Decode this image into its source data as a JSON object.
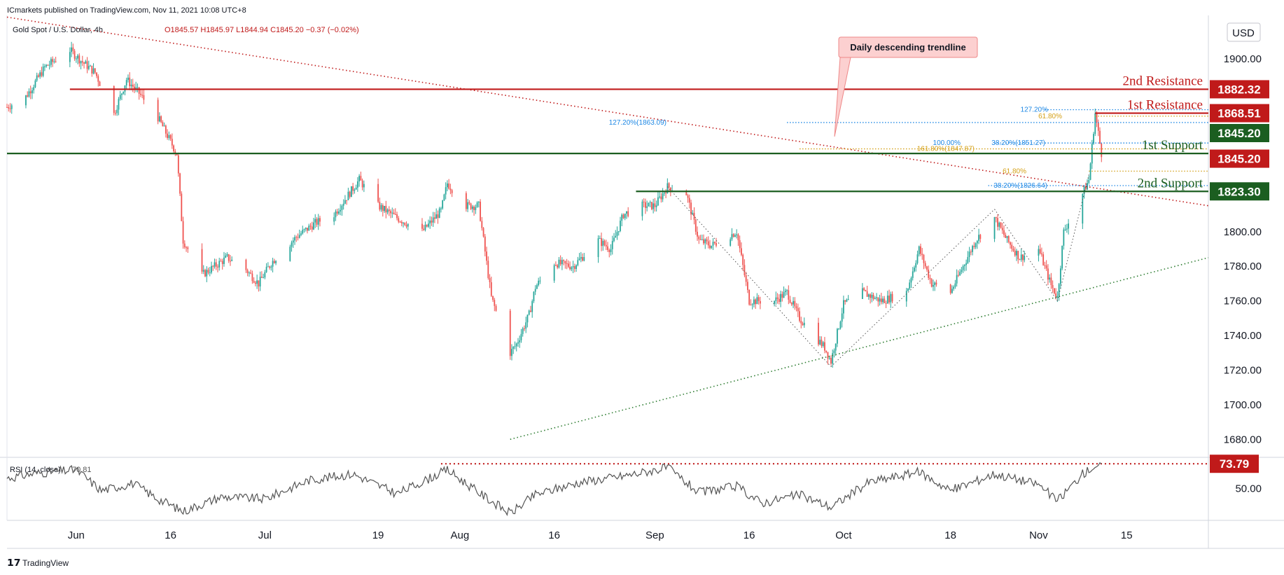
{
  "header": {
    "publisher": "ICmarkets published on TradingView.com, Nov 11, 2021 10:08 UTC+8",
    "symbol": "Gold Spot / U.S. Dollar, 4h",
    "ohlc": "O1845.57 H1845.97 L1844.94 C1845.20 −0.37 (−0.02%)",
    "currency": "USD",
    "footer_logo": "TradingView"
  },
  "colors": {
    "resistance": "#c01a1a",
    "support": "#1b5e20",
    "candle_up": "#26a69a",
    "candle_down": "#ef5350",
    "fib_blue": "#1e88e5",
    "fib_orange": "#d4a017",
    "rsi_line": "#555555"
  },
  "annotations": {
    "trendline_callout": "Daily descending trendline"
  },
  "chart_data": [
    {
      "type": "candlestick",
      "title": "Gold Spot / U.S. Dollar, 4h",
      "ylim": [
        1670,
        1925
      ],
      "y_ticks": [
        1680,
        1700,
        1720,
        1740,
        1760,
        1780,
        1800,
        1820,
        1840,
        1860,
        1880,
        1900,
        1920
      ],
      "y_tick_labels_shown": [
        "1680.00",
        "1700.00",
        "1720.00",
        "1740.00",
        "1760.00",
        "1780.00",
        "1800.00",
        "1900.00"
      ],
      "x_tick_labels": [
        "Jun",
        "16",
        "Jul",
        "19",
        "Aug",
        "16",
        "Sep",
        "16",
        "Oct",
        "18",
        "Nov",
        "15"
      ],
      "x_tick_dates": [
        "2021-06-01",
        "2021-06-16",
        "2021-07-01",
        "2021-07-19",
        "2021-08-01",
        "2021-08-16",
        "2021-09-01",
        "2021-09-16",
        "2021-10-01",
        "2021-10-18",
        "2021-11-01",
        "2021-11-15"
      ],
      "x_range_dates": [
        "2021-05-21",
        "2021-11-28"
      ],
      "price_path": [
        [
          "2021-05-21",
          1872
        ],
        [
          "2021-05-24",
          1878
        ],
        [
          "2021-05-27",
          1895
        ],
        [
          "2021-05-31",
          1905
        ],
        [
          "2021-06-02",
          1898
        ],
        [
          "2021-06-04",
          1892
        ],
        [
          "2021-06-07",
          1868
        ],
        [
          "2021-06-09",
          1888
        ],
        [
          "2021-06-11",
          1880
        ],
        [
          "2021-06-14",
          1866
        ],
        [
          "2021-06-16",
          1852
        ],
        [
          "2021-06-17",
          1845
        ],
        [
          "2021-06-18",
          1795
        ],
        [
          "2021-06-21",
          1775
        ],
        [
          "2021-06-23",
          1780
        ],
        [
          "2021-06-25",
          1785
        ],
        [
          "2021-06-28",
          1778
        ],
        [
          "2021-06-30",
          1770
        ],
        [
          "2021-07-02",
          1782
        ],
        [
          "2021-07-06",
          1797
        ],
        [
          "2021-07-09",
          1805
        ],
        [
          "2021-07-12",
          1810
        ],
        [
          "2021-07-15",
          1825
        ],
        [
          "2021-07-16",
          1830
        ],
        [
          "2021-07-19",
          1815
        ],
        [
          "2021-07-22",
          1808
        ],
        [
          "2021-07-26",
          1800
        ],
        [
          "2021-07-29",
          1812
        ],
        [
          "2021-07-30",
          1828
        ],
        [
          "2021-08-02",
          1815
        ],
        [
          "2021-08-04",
          1815
        ],
        [
          "2021-08-06",
          1762
        ],
        [
          "2021-08-09",
          1730
        ],
        [
          "2021-08-10",
          1735
        ],
        [
          "2021-08-12",
          1752
        ],
        [
          "2021-08-13",
          1768
        ],
        [
          "2021-08-16",
          1782
        ],
        [
          "2021-08-19",
          1780
        ],
        [
          "2021-08-23",
          1795
        ],
        [
          "2021-08-25",
          1790
        ],
        [
          "2021-08-27",
          1810
        ],
        [
          "2021-08-30",
          1815
        ],
        [
          "2021-09-01",
          1815
        ],
        [
          "2021-09-03",
          1826
        ],
        [
          "2021-09-06",
          1822
        ],
        [
          "2021-09-08",
          1795
        ],
        [
          "2021-09-10",
          1792
        ],
        [
          "2021-09-14",
          1800
        ],
        [
          "2021-09-16",
          1760
        ],
        [
          "2021-09-20",
          1760
        ],
        [
          "2021-09-22",
          1765
        ],
        [
          "2021-09-24",
          1750
        ],
        [
          "2021-09-28",
          1733
        ],
        [
          "2021-09-29",
          1725
        ],
        [
          "2021-10-01",
          1758
        ],
        [
          "2021-10-04",
          1765
        ],
        [
          "2021-10-07",
          1760
        ],
        [
          "2021-10-11",
          1765
        ],
        [
          "2021-10-13",
          1790
        ],
        [
          "2021-10-15",
          1770
        ],
        [
          "2021-10-18",
          1765
        ],
        [
          "2021-10-20",
          1780
        ],
        [
          "2021-10-22",
          1795
        ],
        [
          "2021-10-25",
          1808
        ],
        [
          "2021-10-27",
          1795
        ],
        [
          "2021-10-29",
          1785
        ],
        [
          "2021-11-01",
          1790
        ],
        [
          "2021-11-03",
          1769
        ],
        [
          "2021-11-04",
          1762
        ],
        [
          "2021-11-05",
          1800
        ],
        [
          "2021-11-08",
          1822
        ],
        [
          "2021-11-09",
          1830
        ],
        [
          "2021-11-10",
          1868.5
        ],
        [
          "2021-11-11",
          1845.2
        ]
      ],
      "horizontal_levels": [
        {
          "label": "2nd Resistance",
          "value": 1882.32
        },
        {
          "label": "1st Resistance",
          "value": 1868.51
        },
        {
          "label": "1st Support",
          "value": 1845.2
        },
        {
          "label": "2nd Support",
          "value": 1823.3
        }
      ],
      "price_badges": [
        {
          "value": "1882.32",
          "kind": "resistance"
        },
        {
          "value": "1868.51",
          "kind": "resistance"
        },
        {
          "value": "1845.20",
          "kind": "support"
        },
        {
          "value": "1845.20",
          "kind": "resistance"
        },
        {
          "value": "1823.30",
          "kind": "support"
        }
      ],
      "fib_levels": [
        {
          "label": "127.20%",
          "value": 1870.5
        },
        {
          "label": "61.80%",
          "value": 1866.8
        },
        {
          "label": "127.20%(1863.09)",
          "value": 1863.09
        },
        {
          "label": "100.00%",
          "value": 1851.27
        },
        {
          "label": "38.20%(1851.27)",
          "value": 1851.27
        },
        {
          "label": "161.80%(1847.87)",
          "value": 1847.87
        },
        {
          "label": "61.80%",
          "value": 1835.0
        },
        {
          "label": "38.20%(1826.64)",
          "value": 1826.64
        }
      ],
      "trendlines": [
        {
          "name": "descending",
          "from": [
            "2021-05-21",
            1924
          ],
          "to": [
            "2021-11-28",
            1815
          ]
        },
        {
          "name": "ascending",
          "from": [
            "2021-08-09",
            1680
          ],
          "to": [
            "2021-11-28",
            1785
          ]
        }
      ]
    },
    {
      "type": "line",
      "title": "RSI (14, close)",
      "current_value": "70.81",
      "ylim": [
        20,
        80
      ],
      "y_tick_labels_shown": [
        "50.00"
      ],
      "overbought_level": {
        "value": 73.79,
        "label": "73.79"
      },
      "values": [
        [
          "2021-05-21",
          60
        ],
        [
          "2021-05-26",
          65
        ],
        [
          "2021-06-01",
          68
        ],
        [
          "2021-06-05",
          48
        ],
        [
          "2021-06-10",
          55
        ],
        [
          "2021-06-14",
          40
        ],
        [
          "2021-06-18",
          28
        ],
        [
          "2021-06-24",
          42
        ],
        [
          "2021-07-01",
          40
        ],
        [
          "2021-07-08",
          58
        ],
        [
          "2021-07-15",
          64
        ],
        [
          "2021-07-22",
          45
        ],
        [
          "2021-07-30",
          68
        ],
        [
          "2021-08-04",
          46
        ],
        [
          "2021-08-09",
          26
        ],
        [
          "2021-08-13",
          44
        ],
        [
          "2021-08-20",
          56
        ],
        [
          "2021-08-27",
          62
        ],
        [
          "2021-09-03",
          70
        ],
        [
          "2021-09-08",
          46
        ],
        [
          "2021-09-14",
          52
        ],
        [
          "2021-09-18",
          36
        ],
        [
          "2021-09-24",
          44
        ],
        [
          "2021-09-29",
          32
        ],
        [
          "2021-10-05",
          56
        ],
        [
          "2021-10-13",
          66
        ],
        [
          "2021-10-18",
          48
        ],
        [
          "2021-10-25",
          64
        ],
        [
          "2021-11-01",
          54
        ],
        [
          "2021-11-04",
          38
        ],
        [
          "2021-11-08",
          64
        ],
        [
          "2021-11-10",
          72
        ],
        [
          "2021-11-11",
          70.81
        ]
      ]
    }
  ]
}
